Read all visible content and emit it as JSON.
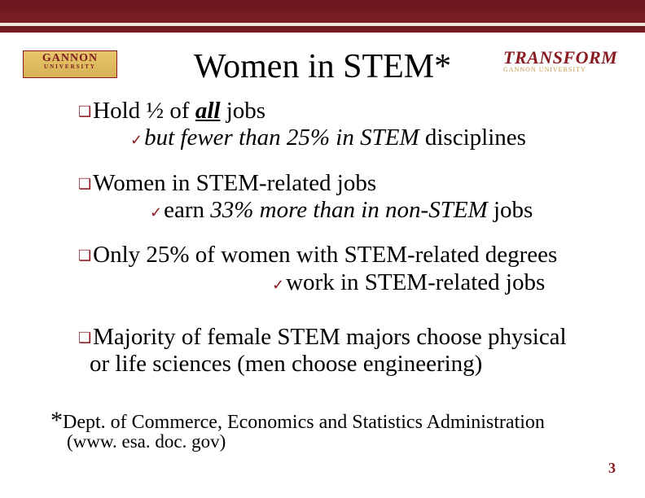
{
  "colors": {
    "accent": "#8a1b22",
    "band_dark": "#6a181e",
    "band_light": "#eee6d8",
    "gold": "#d7b256",
    "background": "#ffffff",
    "text": "#000000"
  },
  "typography": {
    "title_fontsize": 42,
    "body_fontsize": 29,
    "bullet_symbol_fontsize": 18,
    "footnote_fontsize": 24
  },
  "logos": {
    "left": {
      "name": "GANNON",
      "sub": "UNIVERSITY"
    },
    "right": {
      "name": "TRANSFORM",
      "sub": "GANNON UNIVERSITY"
    }
  },
  "title": {
    "text": "Women in STEM",
    "asterisk": "*"
  },
  "bullets": {
    "b1": {
      "lead": "Hold ½ of ",
      "underline": "all",
      "trail": " jobs",
      "sub_italic": "but fewer than 25% in STEM",
      "sub_trail": " disciplines"
    },
    "b2": {
      "main": "Women in STEM-related jobs",
      "sub_lead": "earn ",
      "sub_italic": "33% more than in non-STEM",
      "sub_trail": " jobs"
    },
    "b3": {
      "main": "Only 25% of women with STEM-related degrees",
      "sub": "work in STEM-related jobs"
    },
    "b4": {
      "line1": "Majority of female STEM majors choose physical",
      "line2": "or life sciences (men choose engineering)"
    }
  },
  "footnote": {
    "star": "*",
    "text": "Dept. of Commerce, Economics and Statistics Administration",
    "url": "(www. esa. doc. gov)"
  },
  "page_number": "3",
  "symbols": {
    "square": "❑",
    "check": "✓"
  }
}
